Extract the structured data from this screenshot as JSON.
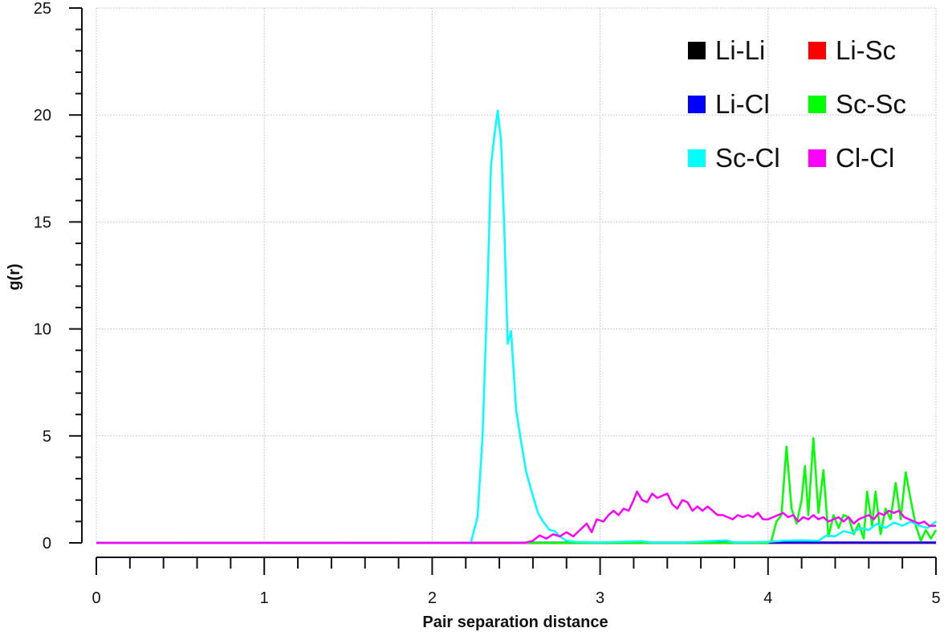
{
  "chart_data": {
    "type": "line",
    "title": "",
    "xlabel": "Pair separation distance",
    "ylabel": "g(r)",
    "xlim": [
      0,
      5
    ],
    "ylim": [
      0,
      25
    ],
    "x_ticks": [
      0,
      1,
      2,
      3,
      4,
      5
    ],
    "y_ticks": [
      0,
      5,
      10,
      15,
      20,
      25
    ],
    "x_tick_labels": [
      "0",
      "1",
      "2",
      "3",
      "4",
      "5"
    ],
    "y_tick_labels": [
      "0",
      "5",
      "10",
      "15",
      "20",
      "25"
    ],
    "grid": true,
    "legend_position": "top-right",
    "series": [
      {
        "name": "Li-Li",
        "color": "#000000",
        "points": [
          [
            0,
            0
          ],
          [
            5,
            0
          ]
        ]
      },
      {
        "name": "Li-Sc",
        "color": "#ff0000",
        "points": [
          [
            0,
            0
          ],
          [
            5,
            0
          ]
        ]
      },
      {
        "name": "Li-Cl",
        "color": "#0000ff",
        "points": [
          [
            0,
            0
          ],
          [
            4.5,
            0.02
          ],
          [
            5,
            0.02
          ]
        ]
      },
      {
        "name": "Sc-Sc",
        "color": "#00ff00",
        "points": [
          [
            0,
            0
          ],
          [
            4.0,
            0
          ],
          [
            4.02,
            0.1
          ],
          [
            4.05,
            1.0
          ],
          [
            4.08,
            1.3
          ],
          [
            4.11,
            4.5
          ],
          [
            4.14,
            1.6
          ],
          [
            4.17,
            0.9
          ],
          [
            4.2,
            2.0
          ],
          [
            4.22,
            3.6
          ],
          [
            4.24,
            1.3
          ],
          [
            4.27,
            4.9
          ],
          [
            4.3,
            1.4
          ],
          [
            4.33,
            3.4
          ],
          [
            4.36,
            0.3
          ],
          [
            4.39,
            1.3
          ],
          [
            4.42,
            0.7
          ],
          [
            4.45,
            1.3
          ],
          [
            4.48,
            1.2
          ],
          [
            4.51,
            0.4
          ],
          [
            4.54,
            0.9
          ],
          [
            4.57,
            0.2
          ],
          [
            4.59,
            2.4
          ],
          [
            4.62,
            0.8
          ],
          [
            4.64,
            2.4
          ],
          [
            4.67,
            0.4
          ],
          [
            4.7,
            1.6
          ],
          [
            4.73,
            1.1
          ],
          [
            4.76,
            2.8
          ],
          [
            4.79,
            1.1
          ],
          [
            4.82,
            3.3
          ],
          [
            4.85,
            2.0
          ],
          [
            4.88,
            0.8
          ],
          [
            4.91,
            0.1
          ],
          [
            4.94,
            0.6
          ],
          [
            4.97,
            0.2
          ],
          [
            5.0,
            0.6
          ]
        ]
      },
      {
        "name": "Sc-Cl",
        "color": "#00ffff",
        "points": [
          [
            0,
            0
          ],
          [
            2.23,
            0
          ],
          [
            2.27,
            1.2
          ],
          [
            2.3,
            5.0
          ],
          [
            2.33,
            12.0
          ],
          [
            2.35,
            17.6
          ],
          [
            2.37,
            19.0
          ],
          [
            2.39,
            20.2
          ],
          [
            2.41,
            18.8
          ],
          [
            2.43,
            14.5
          ],
          [
            2.45,
            9.3
          ],
          [
            2.47,
            9.9
          ],
          [
            2.5,
            6.2
          ],
          [
            2.53,
            4.7
          ],
          [
            2.56,
            3.3
          ],
          [
            2.6,
            2.2
          ],
          [
            2.63,
            1.4
          ],
          [
            2.66,
            1.0
          ],
          [
            2.7,
            0.6
          ],
          [
            2.73,
            0.55
          ],
          [
            2.76,
            0.3
          ],
          [
            2.8,
            0.1
          ],
          [
            2.85,
            0.05
          ],
          [
            3.0,
            0.02
          ],
          [
            3.25,
            0.08
          ],
          [
            3.3,
            0.02
          ],
          [
            3.5,
            0.02
          ],
          [
            3.75,
            0.12
          ],
          [
            3.8,
            0.02
          ],
          [
            4.0,
            0.05
          ],
          [
            4.1,
            0.1
          ],
          [
            4.2,
            0.12
          ],
          [
            4.3,
            0.1
          ],
          [
            4.35,
            0.35
          ],
          [
            4.4,
            0.3
          ],
          [
            4.45,
            0.55
          ],
          [
            4.5,
            0.45
          ],
          [
            4.55,
            0.7
          ],
          [
            4.6,
            0.6
          ],
          [
            4.65,
            0.9
          ],
          [
            4.7,
            0.7
          ],
          [
            4.75,
            0.95
          ],
          [
            4.8,
            0.8
          ],
          [
            4.85,
            1.0
          ],
          [
            4.9,
            0.8
          ],
          [
            4.95,
            0.7
          ],
          [
            5.0,
            1.0
          ]
        ]
      },
      {
        "name": "Cl-Cl",
        "color": "#ff00ff",
        "points": [
          [
            0,
            0
          ],
          [
            2.55,
            0
          ],
          [
            2.6,
            0.1
          ],
          [
            2.64,
            0.35
          ],
          [
            2.68,
            0.2
          ],
          [
            2.72,
            0.4
          ],
          [
            2.76,
            0.3
          ],
          [
            2.8,
            0.5
          ],
          [
            2.84,
            0.3
          ],
          [
            2.88,
            0.6
          ],
          [
            2.92,
            0.9
          ],
          [
            2.95,
            0.5
          ],
          [
            2.98,
            1.1
          ],
          [
            3.02,
            1.0
          ],
          [
            3.05,
            1.3
          ],
          [
            3.08,
            1.5
          ],
          [
            3.11,
            1.3
          ],
          [
            3.14,
            1.6
          ],
          [
            3.17,
            1.5
          ],
          [
            3.2,
            2.0
          ],
          [
            3.22,
            2.4
          ],
          [
            3.25,
            2.0
          ],
          [
            3.28,
            1.9
          ],
          [
            3.31,
            2.3
          ],
          [
            3.34,
            2.1
          ],
          [
            3.37,
            2.2
          ],
          [
            3.4,
            2.3
          ],
          [
            3.43,
            1.8
          ],
          [
            3.46,
            1.6
          ],
          [
            3.49,
            2.0
          ],
          [
            3.52,
            1.9
          ],
          [
            3.55,
            1.5
          ],
          [
            3.58,
            1.7
          ],
          [
            3.61,
            1.5
          ],
          [
            3.64,
            1.7
          ],
          [
            3.67,
            1.5
          ],
          [
            3.7,
            1.3
          ],
          [
            3.73,
            1.3
          ],
          [
            3.76,
            1.2
          ],
          [
            3.79,
            1.1
          ],
          [
            3.82,
            1.3
          ],
          [
            3.85,
            1.2
          ],
          [
            3.88,
            1.3
          ],
          [
            3.91,
            1.2
          ],
          [
            3.94,
            1.4
          ],
          [
            3.97,
            1.1
          ],
          [
            4.0,
            1.1
          ],
          [
            4.03,
            1.2
          ],
          [
            4.06,
            1.3
          ],
          [
            4.09,
            1.4
          ],
          [
            4.12,
            1.2
          ],
          [
            4.15,
            1.3
          ],
          [
            4.18,
            1.0
          ],
          [
            4.21,
            1.2
          ],
          [
            4.24,
            1.1
          ],
          [
            4.27,
            1.3
          ],
          [
            4.3,
            1.1
          ],
          [
            4.33,
            1.2
          ],
          [
            4.36,
            1.0
          ],
          [
            4.39,
            1.1
          ],
          [
            4.42,
            1.2
          ],
          [
            4.45,
            1.0
          ],
          [
            4.48,
            1.2
          ],
          [
            4.51,
            0.9
          ],
          [
            4.54,
            1.1
          ],
          [
            4.57,
            1.2
          ],
          [
            4.6,
            1.3
          ],
          [
            4.63,
            1.1
          ],
          [
            4.66,
            1.4
          ],
          [
            4.69,
            1.3
          ],
          [
            4.72,
            1.5
          ],
          [
            4.75,
            1.4
          ],
          [
            4.78,
            1.5
          ],
          [
            4.81,
            1.2
          ],
          [
            4.84,
            1.1
          ],
          [
            4.87,
            1.0
          ],
          [
            4.9,
            0.9
          ],
          [
            4.93,
            1.0
          ],
          [
            4.96,
            0.8
          ],
          [
            5.0,
            0.8
          ]
        ]
      }
    ]
  }
}
